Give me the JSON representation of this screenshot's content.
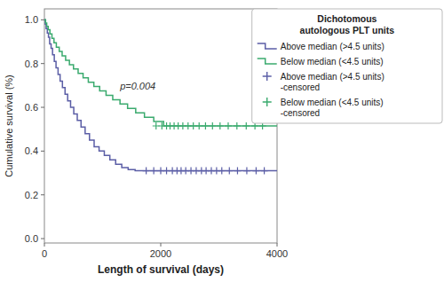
{
  "chart_data": {
    "type": "step",
    "xlabel": "Length of survival (days)",
    "ylabel": "Cumulative survival (%)",
    "xlim": [
      0,
      4000
    ],
    "ylim": [
      -0.02,
      1.05
    ],
    "xticks": [
      0,
      2000,
      4000
    ],
    "yticks": [
      {
        "value": 0.0,
        "label": "0.0"
      },
      0.2,
      0.4,
      0.6,
      0.8,
      {
        "value": 1.0,
        "label": "1.0"
      }
    ],
    "grid": false,
    "legend": "right",
    "legend_title": "Dichotomous\nautologous PLT units",
    "annotations": [
      {
        "text": "p=0.004",
        "x": 1300,
        "y": 0.68
      }
    ],
    "series": [
      {
        "name": "Above median (>4.5 units)",
        "type": "step",
        "color": "#5b5ea6",
        "x": [
          0,
          15,
          30,
          50,
          70,
          90,
          115,
          140,
          170,
          200,
          235,
          270,
          310,
          355,
          400,
          450,
          505,
          565,
          630,
          700,
          775,
          855,
          940,
          1030,
          1125,
          1225,
          1330,
          1440,
          1560,
          1680,
          1810,
          1950,
          2100
        ],
        "values": [
          1.0,
          0.98,
          0.96,
          0.94,
          0.92,
          0.89,
          0.87,
          0.84,
          0.81,
          0.78,
          0.75,
          0.72,
          0.69,
          0.66,
          0.63,
          0.6,
          0.57,
          0.54,
          0.51,
          0.48,
          0.45,
          0.42,
          0.4,
          0.38,
          0.36,
          0.34,
          0.325,
          0.315,
          0.31,
          0.31,
          0.31,
          0.31,
          0.31
        ]
      },
      {
        "name": "Below median (<4.5 units)",
        "type": "step",
        "color": "#3aaa6e",
        "x": [
          0,
          20,
          40,
          65,
          95,
          130,
          165,
          205,
          255,
          305,
          365,
          430,
          500,
          580,
          665,
          755,
          850,
          950,
          1060,
          1175,
          1300,
          1430,
          1570,
          1720,
          1880,
          2050
        ],
        "values": [
          1.0,
          0.985,
          0.97,
          0.955,
          0.935,
          0.915,
          0.895,
          0.875,
          0.855,
          0.835,
          0.815,
          0.795,
          0.775,
          0.755,
          0.735,
          0.715,
          0.695,
          0.675,
          0.655,
          0.635,
          0.615,
          0.595,
          0.575,
          0.555,
          0.535,
          0.515
        ]
      },
      {
        "name": "Above median (>4.5 units)\n-censored",
        "type": "scatter",
        "marker": "plus",
        "color": "#5b5ea6",
        "x": [
          1750,
          1880,
          2000,
          2100,
          2200,
          2280,
          2350,
          2430,
          2520,
          2610,
          2700,
          2780,
          2870,
          2960,
          3050,
          3180,
          3320,
          3480,
          3640,
          3780
        ],
        "values": [
          0.31,
          0.31,
          0.31,
          0.31,
          0.31,
          0.31,
          0.31,
          0.31,
          0.31,
          0.31,
          0.31,
          0.31,
          0.31,
          0.31,
          0.31,
          0.31,
          0.31,
          0.31,
          0.31,
          0.31
        ]
      },
      {
        "name": "Below median (<4.5 units)\n-censored",
        "type": "scatter",
        "marker": "plus",
        "color": "#3aaa6e",
        "x": [
          1920,
          2020,
          2100,
          2160,
          2230,
          2300,
          2380,
          2470,
          2560,
          2660,
          2770,
          2890,
          3020,
          3160,
          3310,
          3470,
          3620,
          3750
        ],
        "values": [
          0.515,
          0.515,
          0.515,
          0.515,
          0.515,
          0.515,
          0.515,
          0.515,
          0.515,
          0.515,
          0.515,
          0.515,
          0.515,
          0.515,
          0.515,
          0.515,
          0.515,
          0.515
        ]
      }
    ]
  }
}
